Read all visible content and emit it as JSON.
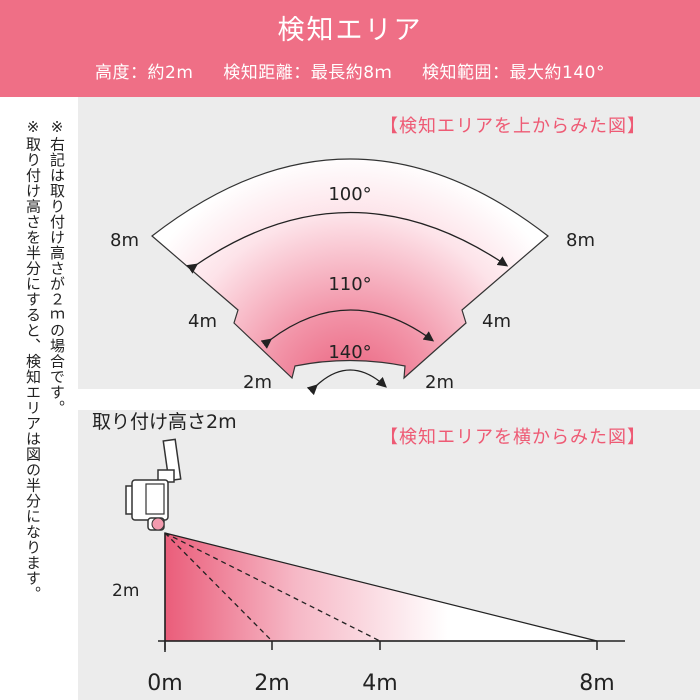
{
  "header": {
    "title": "検知エリア",
    "height_spec": "高度：約2m",
    "distance_spec": "検知距離：最長約8ｍ",
    "angle_spec": "検知範囲：最大約140°"
  },
  "note": {
    "line1": "※右記は取り付け高さが２ｍの場合です。",
    "line2": "※取り付け高さを半分にすると、検知エリアは図の半分になります。"
  },
  "top_view": {
    "section_label": "【検知エリアを上からみた図】",
    "angle_outer": "100°",
    "angle_middle": "110°",
    "angle_inner": "140°",
    "dist_outer": "8m",
    "dist_middle": "4m",
    "dist_inner": "2m"
  },
  "side_view": {
    "section_label": "【検知エリアを横からみた図】",
    "mount_height_label": "取り付け高さ2m",
    "height_label": "2m",
    "axis_ticks": [
      "0m",
      "2m",
      "4m",
      "8m"
    ]
  },
  "colors": {
    "accent": "#ef6f86",
    "label_pink": "#ee5a74",
    "panel_gray": "#ececec",
    "zone_pink": "#f08aa0"
  }
}
